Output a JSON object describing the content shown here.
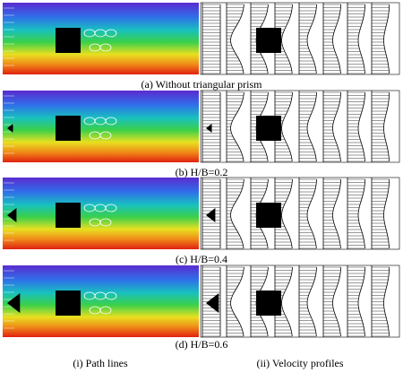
{
  "panels": [
    {
      "caption": "(a) Without triangular prism"
    },
    {
      "caption": "(b) H/B=0.2"
    },
    {
      "caption": "(c) H/B=0.4"
    },
    {
      "caption": "(d) H/B=0.6"
    }
  ],
  "columns": {
    "left": "(i) Path lines",
    "right": "(ii) Velocity profiles"
  }
}
